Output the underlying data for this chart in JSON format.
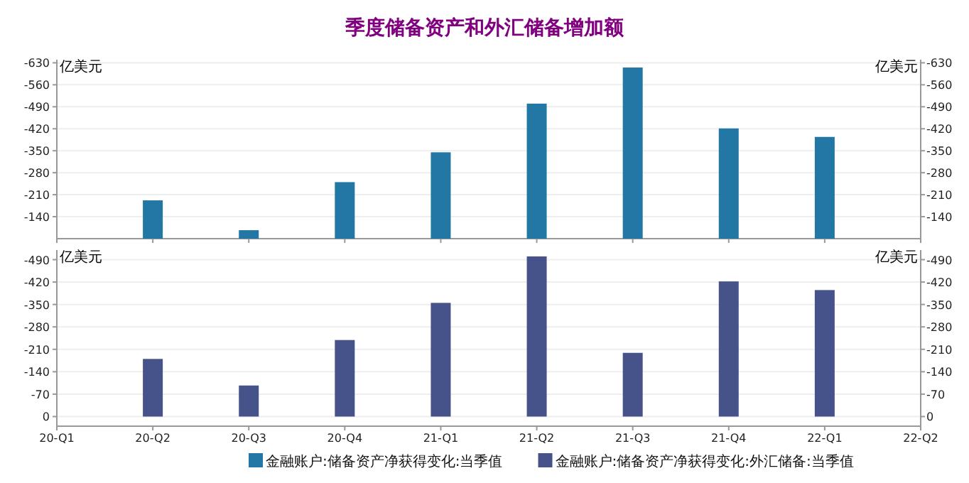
{
  "chart_data": [
    {
      "type": "bar",
      "title": "季度储备资产和外汇储备增加额",
      "ylabel": "亿美元",
      "y2label": "亿美元",
      "categories": [
        null,
        null,
        null,
        null,
        null,
        null,
        null,
        null,
        null,
        null
      ],
      "series": [
        {
          "name": "金融账户:储备资产净获得变化:当季值",
          "color": "#2377a4",
          "values": [
            null,
            -192,
            -97,
            -250,
            -345,
            -500,
            -615,
            -421,
            -394,
            null
          ]
        }
      ],
      "ylim": [
        -70,
        -640
      ],
      "yticks": [
        -140,
        -210,
        -280,
        -350,
        -420,
        -490,
        -560,
        -630
      ],
      "y2lim": [
        -70,
        -640
      ],
      "y2ticks": [
        -140,
        -210,
        -280,
        -350,
        -420,
        -490,
        -560,
        -630
      ],
      "grid": "y",
      "legend": "bottom",
      "tick_labels": "y"
    },
    {
      "type": "bar",
      "ylabel": "亿美元",
      "y2label": "亿美元",
      "categories": [
        "20-Q1",
        "20-Q2",
        "20-Q3",
        "20-Q4",
        "21-Q1",
        "21-Q2",
        "21-Q3",
        "21-Q4",
        "22-Q1",
        "22-Q2"
      ],
      "series": [
        {
          "name": "金融账户:储备资产净获得变化:外汇储备:当季值",
          "color": "#46528a",
          "values": [
            null,
            -180,
            -97,
            -239,
            -355,
            -500,
            -199,
            -422,
            -395,
            null
          ]
        }
      ],
      "ylim": [
        30,
        -520
      ],
      "yticks": [
        0,
        -70,
        -140,
        -210,
        -280,
        -350,
        -420,
        -490
      ],
      "y2lim": [
        30,
        -520
      ],
      "y2ticks": [
        0,
        -70,
        -140,
        -210,
        -280,
        -350,
        -420,
        -490
      ],
      "grid": "y",
      "legend": "bottom"
    }
  ]
}
